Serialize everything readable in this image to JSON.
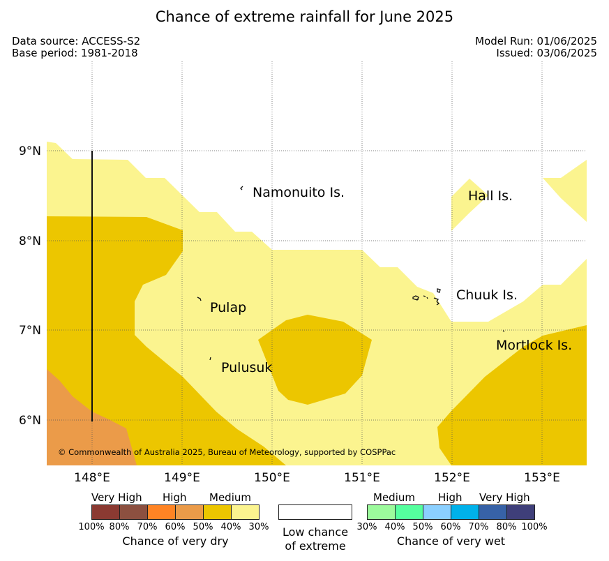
{
  "title": "Chance of extreme rainfall for June 2025",
  "header": {
    "data_source": "Data source: ACCESS-S2",
    "base_period": "Base period: 1981-2018",
    "model_run": "Model Run: 01/06/2025",
    "issued": "Issued: 03/06/2025"
  },
  "map": {
    "x_ticks": [
      "148°E",
      "149°E",
      "150°E",
      "151°E",
      "152°E",
      "153°E"
    ],
    "y_ticks": [
      "9°N",
      "8°N",
      "7°N",
      "6°N"
    ],
    "places": [
      "Namonuito Is.",
      "Hall Is.",
      "Chuuk Is.",
      "Pulap",
      "Pulusuk",
      "Mortlock Is."
    ],
    "copyright": "© Commonwealth of Australia 2025, Bureau of Meteorology, supported by COSPPac"
  },
  "legend": {
    "dry": {
      "categories": [
        "Very High",
        "High",
        "Medium"
      ],
      "ticks": [
        "100%",
        "80%",
        "70%",
        "60%",
        "50%",
        "40%",
        "30%"
      ],
      "title": "Chance of very dry",
      "colors": [
        "#8b3a32",
        "#8c5040",
        "#ff8424",
        "#eb9b49",
        "#ecc600",
        "#fbf48f"
      ]
    },
    "low": {
      "line1": "Low chance",
      "line2": "of extreme"
    },
    "wet": {
      "categories": [
        "Medium",
        "High",
        "Very High"
      ],
      "ticks": [
        "30%",
        "40%",
        "50%",
        "60%",
        "70%",
        "80%",
        "100%"
      ],
      "title": "Chance of very wet",
      "colors": [
        "#9cfa9c",
        "#55ff9e",
        "#8bd0ff",
        "#00b1ea",
        "#3762a7",
        "#3f3f7a"
      ]
    }
  }
}
